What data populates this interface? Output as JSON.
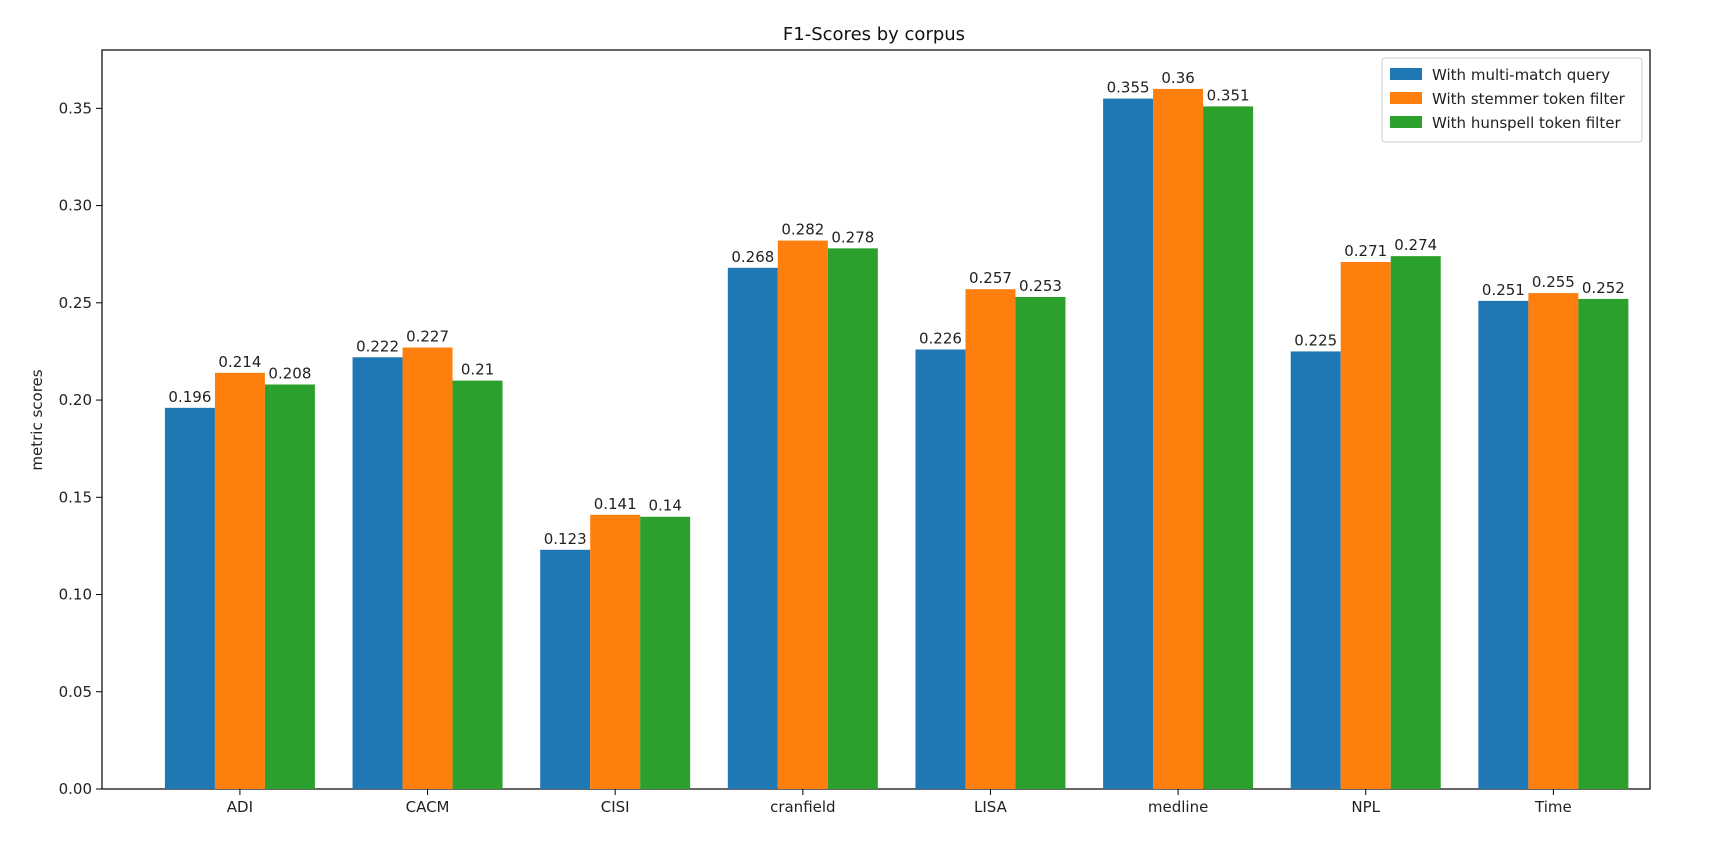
{
  "chart_data": {
    "type": "bar",
    "title": "F1-Scores by corpus",
    "xlabel": "",
    "ylabel": "metric scores",
    "categories": [
      "ADI",
      "CACM",
      "CISI",
      "cranfield",
      "LISA",
      "medline",
      "NPL",
      "Time"
    ],
    "series": [
      {
        "name": "With multi-match query",
        "color": "#1f77b4",
        "values": [
          0.196,
          0.222,
          0.123,
          0.268,
          0.226,
          0.355,
          0.225,
          0.251
        ]
      },
      {
        "name": "With stemmer token filter",
        "color": "#ff7f0e",
        "values": [
          0.214,
          0.227,
          0.141,
          0.282,
          0.257,
          0.36,
          0.271,
          0.255
        ]
      },
      {
        "name": "With hunspell token filter",
        "color": "#2ca02c",
        "values": [
          0.208,
          0.21,
          0.14,
          0.278,
          0.253,
          0.351,
          0.274,
          0.252
        ]
      }
    ],
    "data_labels": [
      [
        "0.196",
        "0.222",
        "0.123",
        "0.268",
        "0.226",
        "0.355",
        "0.225",
        "0.251"
      ],
      [
        "0.214",
        "0.227",
        "0.141",
        "0.282",
        "0.257",
        "0.36",
        "0.271",
        "0.255"
      ],
      [
        "0.208",
        "0.21",
        "0.14",
        "0.278",
        "0.253",
        "0.351",
        "0.274",
        "0.252"
      ]
    ],
    "ylim": [
      0,
      0.38
    ],
    "yticks": [
      0,
      0.05,
      0.1,
      0.15,
      0.2,
      0.25,
      0.3,
      0.35
    ],
    "ytick_labels": [
      "0.00",
      "0.05",
      "0.10",
      "0.15",
      "0.20",
      "0.25",
      "0.30",
      "0.35"
    ],
    "grid": false,
    "legend_position": "top-right"
  }
}
